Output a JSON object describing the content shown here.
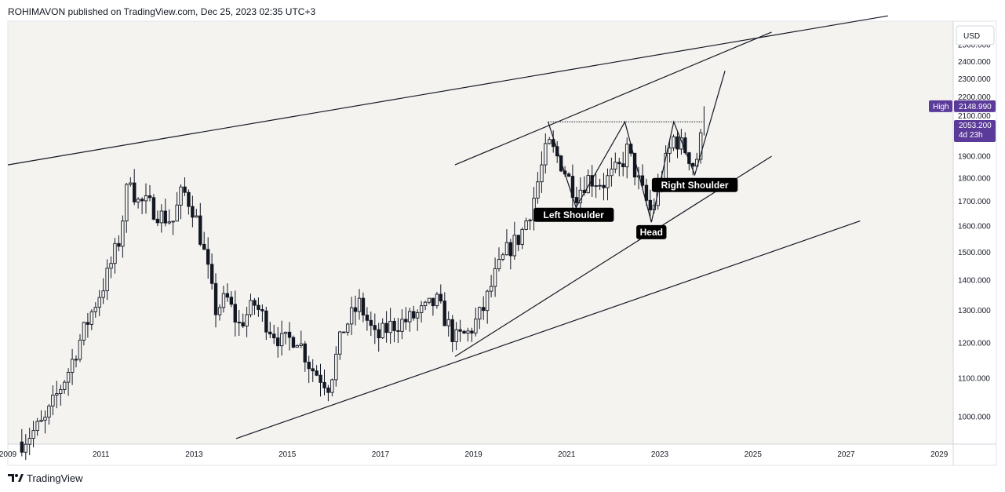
{
  "header": {
    "author": "ROHIMAVON",
    "published": "published on",
    "site": "TradingView.com,",
    "date": "Dec 25, 2023 02:35 UTC+3"
  },
  "footer": {
    "brand": "TradingView"
  },
  "colors": {
    "plot_bg": "#f4f3f0",
    "candle": "#131722",
    "line": "#131722",
    "badge": "#5b3b99",
    "label_bg": "#000000",
    "axis_text": "#131722"
  },
  "chart_data": {
    "type": "candlestick",
    "currency": "USD",
    "y_scale": "log",
    "ylim": [
      935,
      2650
    ],
    "xlim": [
      2009.0,
      2029.3
    ],
    "y_ticks": [
      "1000.000",
      "1100.000",
      "1200.000",
      "1300.000",
      "1400.000",
      "1500.000",
      "1600.000",
      "1700.000",
      "1800.000",
      "1900.000",
      "2000.000",
      "2100.000",
      "2200.000",
      "2300.000",
      "2400.000",
      "2500.000"
    ],
    "x_ticks": [
      "2009",
      "2011",
      "2013",
      "2015",
      "2017",
      "2019",
      "2021",
      "2023",
      "2025",
      "2027",
      "2029"
    ],
    "high_label": "High",
    "high_value": "2148.990",
    "last_value": "2053.200",
    "countdown": "4d 23h",
    "annotations": [
      {
        "text": "Left Shoulder",
        "x": 2021.15,
        "y": 1645
      },
      {
        "text": "Head",
        "x": 2022.82,
        "y": 1576
      },
      {
        "text": "Right Shoulder",
        "x": 2023.75,
        "y": 1770
      }
    ],
    "trendlines": [
      {
        "name": "upper-channel-line",
        "from": [
          2009.0,
          1860
        ],
        "to": [
          2027.9,
          2685
        ]
      },
      {
        "name": "lower-channel-line",
        "from": [
          2013.9,
          948
        ],
        "to": [
          2027.3,
          1620
        ]
      },
      {
        "name": "rising-wedge-upper",
        "from": [
          2018.6,
          1860
        ],
        "to": [
          2025.4,
          2580
        ]
      },
      {
        "name": "rising-wedge-lower",
        "from": [
          2018.6,
          1160
        ],
        "to": [
          2025.4,
          1900
        ]
      },
      {
        "name": "neckline",
        "from": [
          2020.6,
          2068
        ],
        "to": [
          2023.95,
          2068
        ],
        "dashed": true
      },
      {
        "name": "hs-pattern",
        "points": [
          [
            2020.6,
            2068
          ],
          [
            2021.2,
            1675
          ],
          [
            2022.25,
            2068
          ],
          [
            2022.82,
            1615
          ],
          [
            2023.3,
            2068
          ],
          [
            2023.75,
            1815
          ],
          [
            2024.4,
            2345
          ]
        ]
      }
    ],
    "anchors": [
      [
        2009.3,
        940
      ],
      [
        2009.8,
        990
      ],
      [
        2010.3,
        1120
      ],
      [
        2010.7,
        1260
      ],
      [
        2011.1,
        1400
      ],
      [
        2011.4,
        1550
      ],
      [
        2011.62,
        1830
      ],
      [
        2011.75,
        1700
      ],
      [
        2012.0,
        1690
      ],
      [
        2012.3,
        1640
      ],
      [
        2012.55,
        1620
      ],
      [
        2012.75,
        1750
      ],
      [
        2013.0,
        1660
      ],
      [
        2013.25,
        1470
      ],
      [
        2013.45,
        1300
      ],
      [
        2013.7,
        1340
      ],
      [
        2013.95,
        1250
      ],
      [
        2014.3,
        1320
      ],
      [
        2014.6,
        1250
      ],
      [
        2014.9,
        1200
      ],
      [
        2015.2,
        1220
      ],
      [
        2015.5,
        1130
      ],
      [
        2015.9,
        1080
      ],
      [
        2016.2,
        1240
      ],
      [
        2016.55,
        1320
      ],
      [
        2016.9,
        1210
      ],
      [
        2017.2,
        1250
      ],
      [
        2017.6,
        1270
      ],
      [
        2017.95,
        1300
      ],
      [
        2018.2,
        1330
      ],
      [
        2018.6,
        1210
      ],
      [
        2018.9,
        1230
      ],
      [
        2019.2,
        1300
      ],
      [
        2019.45,
        1410
      ],
      [
        2019.7,
        1500
      ],
      [
        2020.0,
        1560
      ],
      [
        2020.25,
        1680
      ],
      [
        2020.6,
        1960
      ],
      [
        2020.85,
        1880
      ],
      [
        2021.2,
        1730
      ],
      [
        2021.45,
        1800
      ],
      [
        2021.8,
        1780
      ],
      [
        2022.15,
        1850
      ],
      [
        2022.3,
        1930
      ],
      [
        2022.6,
        1750
      ],
      [
        2022.82,
        1650
      ],
      [
        2023.05,
        1820
      ],
      [
        2023.3,
        1990
      ],
      [
        2023.55,
        1930
      ],
      [
        2023.75,
        1850
      ],
      [
        2023.95,
        2053
      ]
    ],
    "step": 0.0833,
    "seed": 7
  }
}
